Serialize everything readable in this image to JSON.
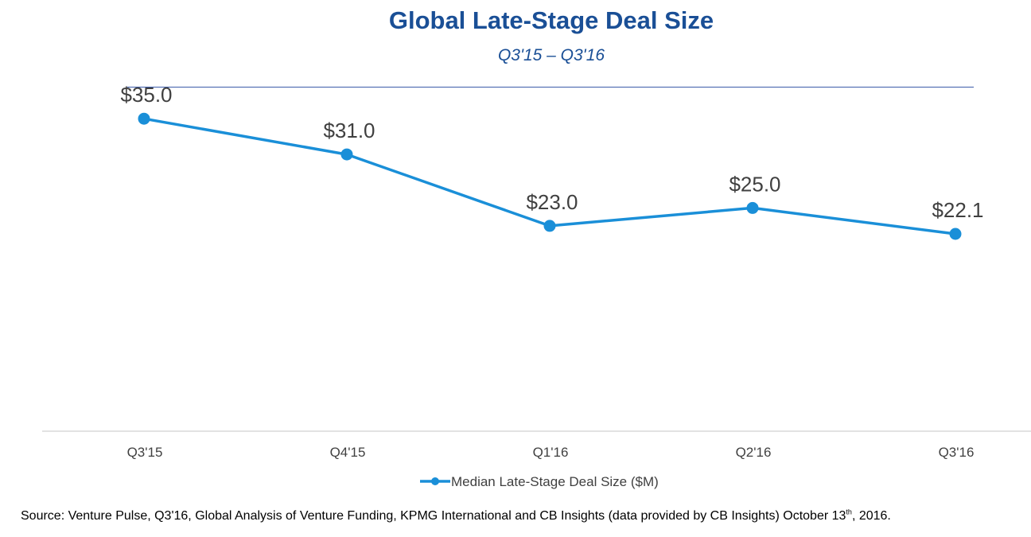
{
  "chart_data": {
    "type": "line",
    "title": "Global Late-Stage Deal Size",
    "subtitle": "Q3'15 – Q3'16",
    "categories": [
      "Q3'15",
      "Q4'15",
      "Q1'16",
      "Q2'16",
      "Q3'16"
    ],
    "series": [
      {
        "name": "Median Late-Stage Deal Size ($M)",
        "values": [
          35.0,
          31.0,
          23.0,
          25.0,
          22.1
        ],
        "data_labels": [
          "$35.0",
          "$31.0",
          "$23.0",
          "$25.0",
          "$22.1"
        ]
      }
    ],
    "xlabel": "",
    "ylabel": "",
    "ylim": [
      0,
      45
    ],
    "grid": false,
    "legend": "bottom",
    "colors": {
      "series": "#1a8fd8",
      "title": "#1a4f96",
      "axis": "#d9d9d9",
      "label": "#404040"
    }
  },
  "source": {
    "before": "Source: Venture Pulse, Q3'16, Global Analysis of Venture Funding, KPMG International and CB Insights (data provided by CB Insights) October 13",
    "ordinal": "th",
    "after": ", 2016."
  }
}
